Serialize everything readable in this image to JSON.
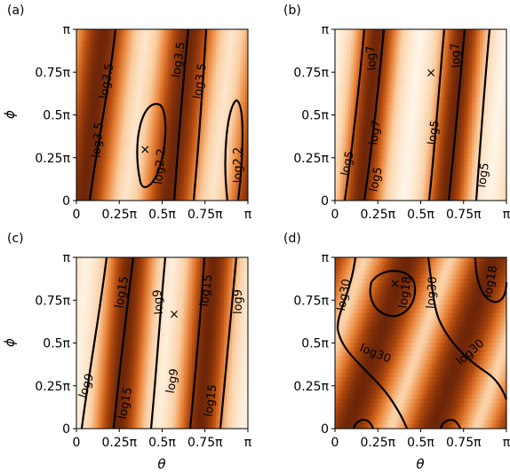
{
  "chart_data": [
    {
      "id": "a",
      "panel_label": "(a)",
      "type": "heatmap",
      "colormap": "white-to-dark-brown (Oranges)",
      "xlim": [
        "0",
        "π"
      ],
      "ylim": [
        "0",
        "π"
      ],
      "xticks": [
        "0",
        "0.25π",
        "0.5π",
        "0.75π",
        "π"
      ],
      "yticks": [
        "0",
        "0.25π",
        "0.5π",
        "0.75π",
        "π"
      ],
      "xlabel": "",
      "ylabel": "ϕ",
      "marker": {
        "symbol": "×",
        "theta_over_pi": 0.4,
        "phi_over_pi": 0.3
      },
      "contour_labels": [
        "log3.5",
        "log3.5",
        "log3.5",
        "log3.5",
        "log2.2",
        "log2.2"
      ],
      "field": {
        "dark_ridges_theta_over_pi": [
          0.1,
          0.6
        ],
        "slant": 0.12,
        "ridge_width": 0.13
      }
    },
    {
      "id": "b",
      "panel_label": "(b)",
      "type": "heatmap",
      "colormap": "white-to-dark-brown (Oranges)",
      "xlim": [
        "0",
        "π"
      ],
      "ylim": [
        "0",
        "π"
      ],
      "xticks": [
        "0",
        "0.25π",
        "0.5π",
        "0.75π",
        "π"
      ],
      "yticks": [
        "0",
        "0.25π",
        "0.5π",
        "0.75π",
        "π"
      ],
      "xlabel": "",
      "ylabel": "",
      "marker": {
        "symbol": "×",
        "theta_over_pi": 0.56,
        "phi_over_pi": 0.75
      },
      "contour_labels": [
        "log7",
        "log7",
        "log7",
        "log5",
        "log5",
        "log5",
        "log5"
      ],
      "field": {
        "dark_ridges_theta_over_pi": [
          0.2,
          0.7
        ],
        "slant": 0.1,
        "ridge_width": 0.1
      }
    },
    {
      "id": "c",
      "panel_label": "(c)",
      "type": "heatmap",
      "colormap": "white-to-dark-brown (Oranges)",
      "xlim": [
        "0",
        "π"
      ],
      "ylim": [
        "0",
        "π"
      ],
      "xticks": [
        "0",
        "0.25π",
        "0.5π",
        "0.75π",
        "π"
      ],
      "yticks": [
        "0",
        "0.25π",
        "0.5π",
        "0.75π",
        "π"
      ],
      "xlabel": "θ",
      "ylabel": "ϕ",
      "marker": {
        "symbol": "×",
        "theta_over_pi": 0.57,
        "phi_over_pi": 0.67
      },
      "contour_labels": [
        "log15",
        "log15",
        "log9",
        "log9",
        "log9",
        "log15",
        "log15",
        "log9"
      ],
      "field": {
        "dark_ridges_theta_over_pi": [
          0.28,
          0.76
        ],
        "slant": 0.08,
        "ridge_width": 0.11
      }
    },
    {
      "id": "d",
      "panel_label": "(d)",
      "type": "heatmap",
      "colormap": "white-to-dark-brown (Oranges)",
      "xlim": [
        "0",
        "π"
      ],
      "ylim": [
        "0",
        "π"
      ],
      "xticks": [
        "0",
        "0.25π",
        "0.5π",
        "0.75π",
        "π"
      ],
      "yticks": [
        "0",
        "0.25π",
        "0.5π",
        "0.75π",
        "π"
      ],
      "xlabel": "θ",
      "ylabel": "",
      "marker": {
        "symbol": "×",
        "theta_over_pi": 0.35,
        "phi_over_pi": 0.85
      },
      "contour_labels": [
        "log30",
        "log18",
        "log30",
        "log18",
        "log30",
        "log30"
      ],
      "field": {
        "dark_ridges_theta_over_pi": [
          0.25,
          0.75
        ],
        "slant": 0.35,
        "ridge_width": 0.16
      }
    }
  ]
}
